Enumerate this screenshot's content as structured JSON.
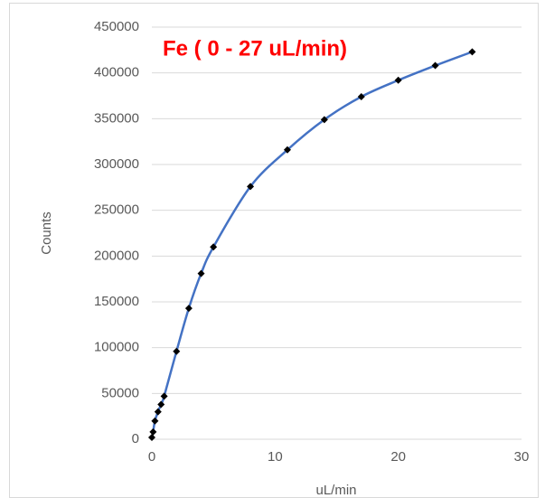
{
  "chart_data": {
    "type": "scatter",
    "title": "Fe ( 0 - 27 uL/min)",
    "x_label": "uL/min",
    "y_label": "Counts",
    "series": [
      {
        "color": "#4472c4",
        "marker_color": "#000000",
        "x": [
          0,
          0.1,
          0.25,
          0.5,
          0.75,
          1,
          2,
          3,
          4,
          5,
          8,
          11,
          14,
          17,
          20,
          23,
          26
        ],
        "values": [
          2000,
          8000,
          20000,
          30000,
          38000,
          47000,
          96000,
          143000,
          181000,
          210000,
          276000,
          316000,
          349000,
          374000,
          392000,
          408000,
          423000
        ]
      }
    ],
    "xlim": [
      0,
      30
    ],
    "xticks": [
      0,
      10,
      20,
      30
    ],
    "ylim": [
      0,
      450000
    ],
    "yticks": [
      0,
      50000,
      100000,
      150000,
      200000,
      250000,
      300000,
      350000,
      400000,
      450000
    ],
    "grid": true
  }
}
